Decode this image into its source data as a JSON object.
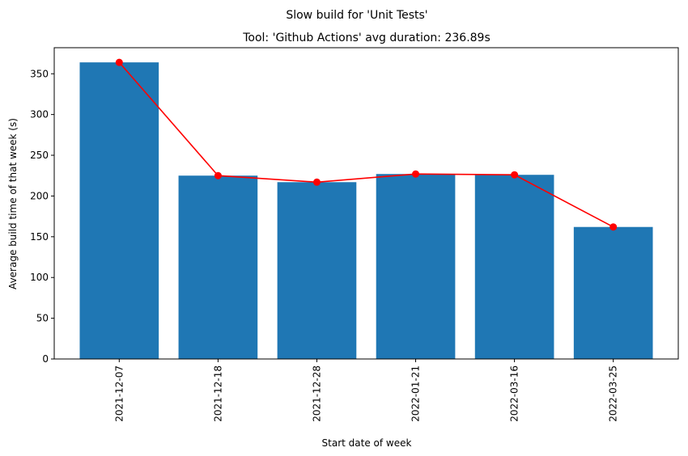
{
  "chart_data": {
    "type": "bar",
    "suptitle": "Slow build for 'Unit Tests'",
    "title": "Tool: 'Github Actions' avg duration: 236.89s",
    "xlabel": "Start date of week",
    "ylabel": "Average build time of that week (s)",
    "categories": [
      "2021-12-07",
      "2021-12-18",
      "2021-12-28",
      "2022-01-21",
      "2022-03-16",
      "2022-03-25"
    ],
    "series": [
      {
        "type": "bar",
        "values": [
          364,
          225,
          217,
          227,
          226,
          162
        ]
      },
      {
        "type": "line",
        "values": [
          364,
          225,
          217,
          227,
          226,
          162
        ]
      }
    ],
    "ylim": [
      0,
      382
    ],
    "yticks": [
      0,
      50,
      100,
      150,
      200,
      250,
      300,
      350
    ],
    "grid": false,
    "colors": {
      "bar": "#1f77b4",
      "line": "#ff0000",
      "marker": "#ff0000"
    }
  }
}
